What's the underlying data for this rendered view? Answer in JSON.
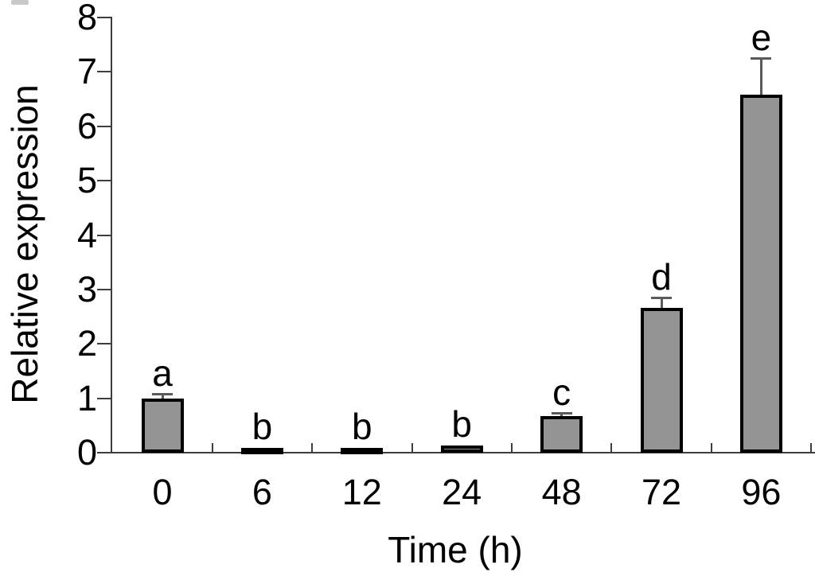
{
  "chart_data": {
    "type": "bar",
    "title": "",
    "xlabel": "Time (h)",
    "ylabel": "Relative expression",
    "categories": [
      "0",
      "6",
      "12",
      "24",
      "48",
      "72",
      "96"
    ],
    "values": [
      1.0,
      0.05,
      0.06,
      0.13,
      0.68,
      2.66,
      6.58
    ],
    "errors": [
      0.07,
      0,
      0,
      0,
      0.04,
      0.17,
      0.66
    ],
    "sig_letters": [
      "a",
      "b",
      "b",
      "b",
      "c",
      "d",
      "e"
    ],
    "ylim": [
      0,
      8
    ],
    "yticks": [
      0,
      1,
      2,
      3,
      4,
      5,
      6,
      7,
      8
    ],
    "grid": false,
    "legend_position": "none",
    "bar_fill_color": "#949494",
    "bar_border_color": "#000000",
    "error_bar_color": "#5a5a5a",
    "axis_color": "#3d3d3d",
    "text_color": "#000000"
  }
}
